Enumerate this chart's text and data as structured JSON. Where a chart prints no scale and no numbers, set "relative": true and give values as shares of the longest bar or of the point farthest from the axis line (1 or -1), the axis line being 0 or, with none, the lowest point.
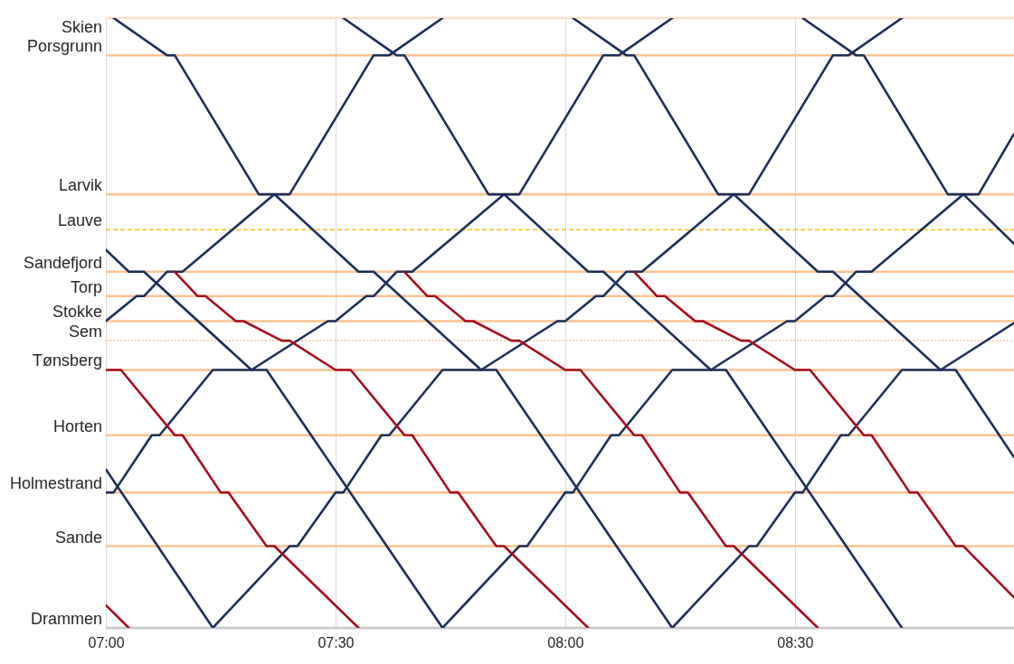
{
  "chart_data": {
    "type": "line",
    "relative": true,
    "grid": "x",
    "line_style": "solid",
    "xlim": [
      7.0,
      8.977
    ],
    "xticks": [
      {
        "value": 7.0,
        "label": "07:00"
      },
      {
        "value": 7.5,
        "label": "07:30"
      },
      {
        "value": 8.0,
        "label": "08:00"
      },
      {
        "value": 8.5,
        "label": "08:30"
      }
    ],
    "ref_lines": [
      {
        "axis": "y",
        "value": 1.0,
        "label": "Skien",
        "color": "#fde0c5",
        "line_style": "solid"
      },
      {
        "axis": "y",
        "value": 0.939,
        "label": "Porsgrunn",
        "color": "#fbc391",
        "line_style": "solid"
      },
      {
        "axis": "y",
        "value": 0.711,
        "label": "Larvik",
        "color": "#fbc391",
        "line_style": "solid"
      },
      {
        "axis": "y",
        "value": 0.653,
        "label": "Lauve",
        "color": "#f5c518",
        "line_style": "dashed"
      },
      {
        "axis": "y",
        "value": 0.584,
        "label": "Sandefjord",
        "color": "#fbc391",
        "line_style": "solid"
      },
      {
        "axis": "y",
        "value": 0.544,
        "label": "Torp",
        "color": "#fbc391",
        "line_style": "solid"
      },
      {
        "axis": "y",
        "value": 0.503,
        "label": "Stokke",
        "color": "#fbc391",
        "line_style": "solid"
      },
      {
        "axis": "y",
        "value": 0.471,
        "label": "Sem",
        "color": "#f4a66a",
        "line_style": "dotted"
      },
      {
        "axis": "y",
        "value": 0.423,
        "label": "Tønsberg",
        "color": "#fbc391",
        "line_style": "solid"
      },
      {
        "axis": "y",
        "value": 0.316,
        "label": "Horten",
        "color": "#fbc391",
        "line_style": "solid"
      },
      {
        "axis": "y",
        "value": 0.222,
        "label": "Holmestrand",
        "color": "#fbc391",
        "line_style": "solid"
      },
      {
        "axis": "y",
        "value": 0.134,
        "label": "Sande",
        "color": "#fbc391",
        "line_style": "solid"
      },
      {
        "axis": "y",
        "value": 0.0,
        "label": "Drammen",
        "color": "#c8c8c8",
        "line_style": "solid"
      }
    ],
    "series": [
      {
        "color": "#1c2f5a",
        "x": [
          7.0,
          7.233
        ],
        "values": [
          0.26,
          0
        ]
      },
      {
        "color": "#1c2f5a",
        "x": [
          7.0,
          7.05,
          7.083,
          7.317,
          7.35,
          7.733
        ],
        "values": [
          0.62,
          0.584,
          0.584,
          0.423,
          0.423,
          0
        ]
      },
      {
        "color": "#1c2f5a",
        "x": [
          7.017,
          7.133,
          7.15,
          7.333,
          7.367,
          7.55,
          7.583,
          7.817,
          7.85,
          8.233
        ],
        "values": [
          1,
          0.939,
          0.939,
          0.711,
          0.711,
          0.584,
          0.584,
          0.423,
          0.423,
          0
        ]
      },
      {
        "color": "#1c2f5a",
        "x": [
          7.517,
          7.633,
          7.65,
          7.833,
          7.867,
          8.05,
          8.083,
          8.317,
          8.35,
          8.733
        ],
        "values": [
          1,
          0.939,
          0.939,
          0.711,
          0.711,
          0.584,
          0.584,
          0.423,
          0.423,
          0
        ]
      },
      {
        "color": "#1c2f5a",
        "x": [
          8.017,
          8.133,
          8.15,
          8.333,
          8.367,
          8.55,
          8.583,
          8.817,
          8.85,
          8.977
        ],
        "values": [
          1,
          0.939,
          0.939,
          0.711,
          0.711,
          0.584,
          0.584,
          0.423,
          0.423,
          0.28
        ]
      },
      {
        "color": "#1c2f5a",
        "x": [
          8.517,
          8.633,
          8.65,
          8.833,
          8.867,
          8.977
        ],
        "values": [
          1,
          0.939,
          0.939,
          0.711,
          0.711,
          0.63
        ]
      },
      {
        "color": "#1c2f5a",
        "x": [
          7.0,
          7.067,
          7.083,
          7.133,
          7.167,
          7.367,
          7.4,
          7.583,
          7.617,
          7.733
        ],
        "values": [
          0.503,
          0.544,
          0.544,
          0.584,
          0.584,
          0.711,
          0.711,
          0.939,
          0.939,
          1
        ]
      },
      {
        "color": "#1c2f5a",
        "x": [
          7.0,
          7.017,
          7.1,
          7.117,
          7.233,
          7.317,
          7.483,
          7.5,
          7.567,
          7.583,
          7.633,
          7.667,
          7.867,
          7.9,
          8.083,
          8.117,
          8.233
        ],
        "values": [
          0.222,
          0.222,
          0.316,
          0.316,
          0.423,
          0.423,
          0.503,
          0.503,
          0.544,
          0.544,
          0.584,
          0.584,
          0.711,
          0.711,
          0.939,
          0.939,
          1
        ]
      },
      {
        "color": "#1c2f5a",
        "x": [
          7.233,
          7.4,
          7.417,
          7.5,
          7.517,
          7.6,
          7.617,
          7.733,
          7.817,
          7.983,
          8.0,
          8.067,
          8.083,
          8.133,
          8.167,
          8.367,
          8.4,
          8.583,
          8.617,
          8.733
        ],
        "values": [
          0,
          0.134,
          0.134,
          0.222,
          0.222,
          0.316,
          0.316,
          0.423,
          0.423,
          0.503,
          0.503,
          0.544,
          0.544,
          0.584,
          0.584,
          0.711,
          0.711,
          0.939,
          0.939,
          1
        ]
      },
      {
        "color": "#1c2f5a",
        "x": [
          7.733,
          7.9,
          7.917,
          8.0,
          8.017,
          8.1,
          8.117,
          8.233,
          8.317,
          8.483,
          8.5,
          8.567,
          8.583,
          8.633,
          8.667,
          8.867,
          8.9,
          8.977
        ],
        "values": [
          0,
          0.134,
          0.134,
          0.222,
          0.222,
          0.316,
          0.316,
          0.423,
          0.423,
          0.503,
          0.503,
          0.544,
          0.544,
          0.584,
          0.584,
          0.711,
          0.711,
          0.81
        ]
      },
      {
        "color": "#1c2f5a",
        "x": [
          8.233,
          8.4,
          8.417,
          8.5,
          8.517,
          8.6,
          8.617,
          8.733,
          8.817,
          8.977
        ],
        "values": [
          0,
          0.134,
          0.134,
          0.222,
          0.222,
          0.316,
          0.316,
          0.423,
          0.423,
          0.5
        ]
      },
      {
        "color": "#a50e1e",
        "x": [
          7.0,
          7.05
        ],
        "values": [
          0.037,
          0
        ]
      },
      {
        "color": "#a50e1e",
        "x": [
          7.0,
          7.033,
          7.15,
          7.167,
          7.25,
          7.267,
          7.35,
          7.367,
          7.55
        ],
        "values": [
          0.423,
          0.423,
          0.316,
          0.316,
          0.222,
          0.222,
          0.134,
          0.134,
          0
        ]
      },
      {
        "color": "#a50e1e",
        "x": [
          7.15,
          7.2,
          7.217,
          7.283,
          7.3,
          7.383,
          7.4,
          7.5,
          7.533,
          7.65,
          7.667,
          7.75,
          7.767,
          7.85,
          7.867,
          8.05
        ],
        "values": [
          0.584,
          0.544,
          0.544,
          0.503,
          0.503,
          0.471,
          0.471,
          0.423,
          0.423,
          0.316,
          0.316,
          0.222,
          0.222,
          0.134,
          0.134,
          0
        ]
      },
      {
        "color": "#a50e1e",
        "x": [
          7.65,
          7.7,
          7.717,
          7.783,
          7.8,
          7.883,
          7.9,
          8.0,
          8.033,
          8.15,
          8.167,
          8.25,
          8.267,
          8.35,
          8.367,
          8.55
        ],
        "values": [
          0.584,
          0.544,
          0.544,
          0.503,
          0.503,
          0.471,
          0.471,
          0.423,
          0.423,
          0.316,
          0.316,
          0.222,
          0.222,
          0.134,
          0.134,
          0
        ]
      },
      {
        "color": "#a50e1e",
        "x": [
          8.15,
          8.2,
          8.217,
          8.283,
          8.3,
          8.383,
          8.4,
          8.5,
          8.533,
          8.65,
          8.667,
          8.75,
          8.767,
          8.85,
          8.867,
          8.977
        ],
        "values": [
          0.584,
          0.544,
          0.544,
          0.503,
          0.503,
          0.471,
          0.471,
          0.423,
          0.423,
          0.316,
          0.316,
          0.222,
          0.222,
          0.134,
          0.134,
          0.05
        ]
      }
    ]
  }
}
